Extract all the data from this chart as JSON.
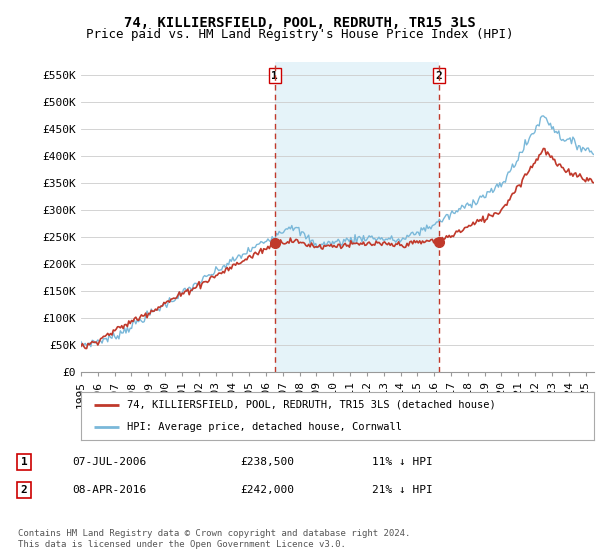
{
  "title": "74, KILLIERSFIELD, POOL, REDRUTH, TR15 3LS",
  "subtitle": "Price paid vs. HM Land Registry's House Price Index (HPI)",
  "ylabel_ticks": [
    "£0",
    "£50K",
    "£100K",
    "£150K",
    "£200K",
    "£250K",
    "£300K",
    "£350K",
    "£400K",
    "£450K",
    "£500K",
    "£550K"
  ],
  "ytick_vals": [
    0,
    50000,
    100000,
    150000,
    200000,
    250000,
    300000,
    350000,
    400000,
    450000,
    500000,
    550000
  ],
  "ylim": [
    0,
    575000
  ],
  "xlim_start": 1995.0,
  "xlim_end": 2025.5,
  "hpi_color": "#7ab8d9",
  "hpi_fill_color": "#daeef7",
  "price_color": "#c0392b",
  "vline_color": "#c0392b",
  "marker1_x": 2006.52,
  "marker1_y": 238500,
  "marker2_x": 2016.27,
  "marker2_y": 242000,
  "vline1_x": 2006.52,
  "vline2_x": 2016.27,
  "sale1_label": "1",
  "sale2_label": "2",
  "legend_entry1": "74, KILLIERSFIELD, POOL, REDRUTH, TR15 3LS (detached house)",
  "legend_entry2": "HPI: Average price, detached house, Cornwall",
  "table_row1": [
    "1",
    "07-JUL-2006",
    "£238,500",
    "11% ↓ HPI"
  ],
  "table_row2": [
    "2",
    "08-APR-2016",
    "£242,000",
    "21% ↓ HPI"
  ],
  "footnote": "Contains HM Land Registry data © Crown copyright and database right 2024.\nThis data is licensed under the Open Government Licence v3.0.",
  "bg_color": "#ffffff",
  "grid_color": "#cccccc",
  "title_fontsize": 10,
  "subtitle_fontsize": 9,
  "tick_fontsize": 8
}
